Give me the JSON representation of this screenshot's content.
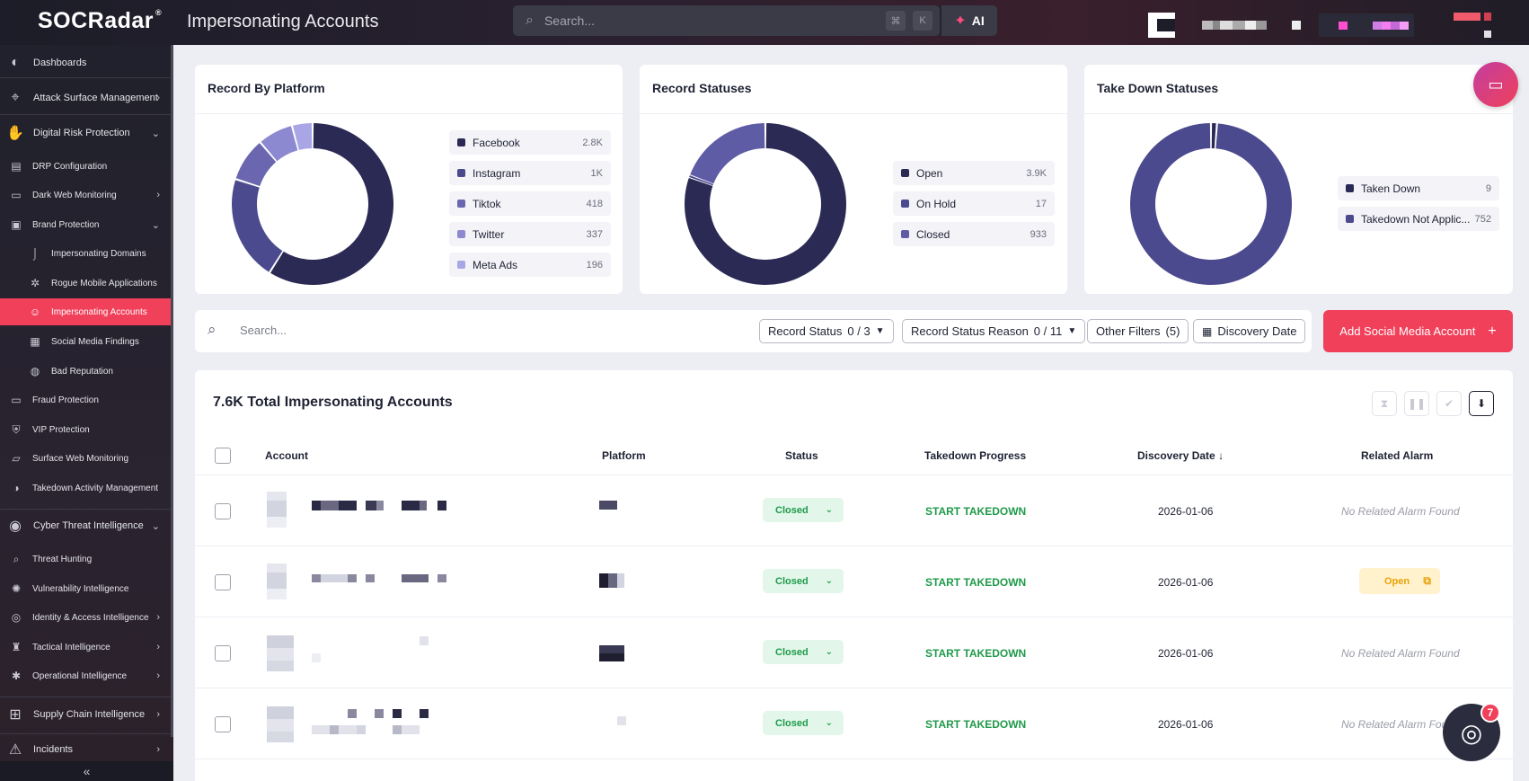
{
  "app": {
    "logo_text": "SOCRadar",
    "page_title": "Impersonating Accounts",
    "search_placeholder": "Search...",
    "kbd_cmd": "⌘",
    "kbd_k": "K",
    "ai_label": "AI"
  },
  "sidebar": {
    "dashboards": "Dashboards",
    "asm": "Attack Surface Management",
    "drp": "Digital Risk Protection",
    "drp_config": "DRP Configuration",
    "dark_web": "Dark Web Monitoring",
    "brand_protection": "Brand Protection",
    "imp_domains": "Impersonating Domains",
    "rogue_apps": "Rogue Mobile Applications",
    "imp_accounts": "Impersonating Accounts",
    "social_findings": "Social Media Findings",
    "bad_reputation": "Bad Reputation",
    "fraud": "Fraud Protection",
    "vip": "VIP Protection",
    "surface_web": "Surface Web Monitoring",
    "takedown_mgmt": "Takedown Activity Management",
    "cti": "Cyber Threat Intelligence",
    "threat_hunting": "Threat Hunting",
    "vuln_intel": "Vulnerability Intelligence",
    "iam_intel": "Identity & Access Intelligence",
    "tactical": "Tactical Intelligence",
    "operational": "Operational Intelligence",
    "supply_chain": "Supply Chain Intelligence",
    "incidents": "Incidents"
  },
  "cards": {
    "platform": {
      "title": "Record By Platform",
      "items": [
        {
          "name": "Facebook",
          "value": "2.8K",
          "color": "#2b2a55"
        },
        {
          "name": "Instagram",
          "value": "1K",
          "color": "#4c4a8e"
        },
        {
          "name": "Tiktok",
          "value": "418",
          "color": "#6a67b0"
        },
        {
          "name": "Twitter",
          "value": "337",
          "color": "#8c89d0"
        },
        {
          "name": "Meta Ads",
          "value": "196",
          "color": "#a9a6e6"
        }
      ]
    },
    "statuses": {
      "title": "Record Statuses",
      "items": [
        {
          "name": "Open",
          "value": "3.9K",
          "color": "#2b2a55"
        },
        {
          "name": "On Hold",
          "value": "17",
          "color": "#4c4a8e"
        },
        {
          "name": "Closed",
          "value": "933",
          "color": "#5f5ca6"
        }
      ]
    },
    "takedown": {
      "title": "Take Down Statuses",
      "items": [
        {
          "name": "Taken Down",
          "value": "9",
          "color": "#2b2a55"
        },
        {
          "name": "Takedown Not Applic...",
          "value": "752",
          "color": "#4c4a8e"
        }
      ]
    }
  },
  "filters": {
    "search_placeholder": "Search...",
    "record_status_label": "Record Status",
    "record_status_value": "0 / 3",
    "reason_label": "Record Status Reason",
    "reason_value": "0 / 11",
    "other_label": "Other Filters",
    "other_value": "(5)",
    "discovery_label": "Discovery Date",
    "add_button": "Add Social Media Account"
  },
  "table": {
    "title": "7.6K Total Impersonating Accounts",
    "headers": {
      "account": "Account",
      "platform": "Platform",
      "status": "Status",
      "progress": "Takedown Progress",
      "date": "Discovery Date",
      "alarm": "Related Alarm"
    },
    "rows": [
      {
        "status": "Closed",
        "progress": "START TAKEDOWN",
        "date": "2026-01-06",
        "alarm": "No Related Alarm Found"
      },
      {
        "status": "Closed",
        "progress": "START TAKEDOWN",
        "date": "2026-01-06",
        "alarm": "Open"
      },
      {
        "status": "Closed",
        "progress": "START TAKEDOWN",
        "date": "2026-01-06",
        "alarm": "No Related Alarm Found"
      },
      {
        "status": "Closed",
        "progress": "START TAKEDOWN",
        "date": "2026-01-06",
        "alarm": "No Related Alarm Fou"
      }
    ]
  },
  "chat_badge": "7"
}
